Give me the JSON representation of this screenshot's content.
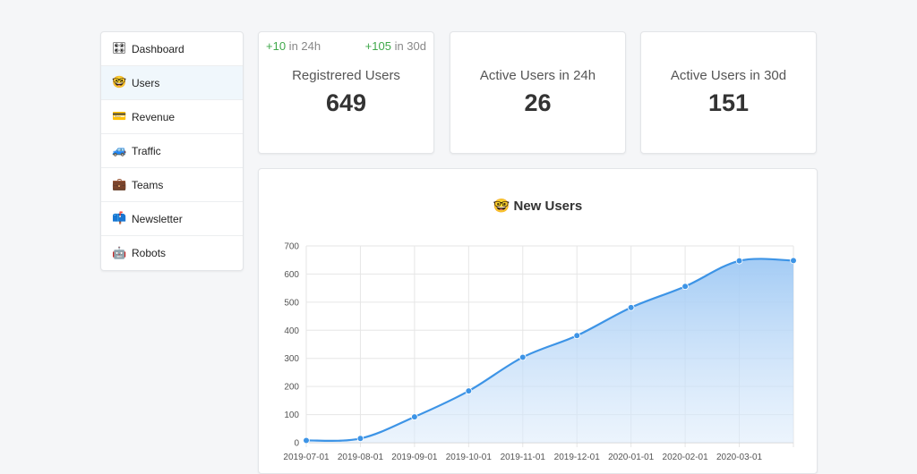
{
  "sidebar": {
    "items": [
      {
        "label": "Dashboard",
        "icon": "dashboard-icon",
        "glyph": "🎛",
        "active": false
      },
      {
        "label": "Users",
        "icon": "nerd-face-icon",
        "glyph": "🤓",
        "active": true
      },
      {
        "label": "Revenue",
        "icon": "credit-card-icon",
        "glyph": "💳",
        "active": false
      },
      {
        "label": "Traffic",
        "icon": "car-icon",
        "glyph": "🚙",
        "active": false
      },
      {
        "label": "Teams",
        "icon": "briefcase-icon",
        "glyph": "💼",
        "active": false
      },
      {
        "label": "Newsletter",
        "icon": "mailbox-icon",
        "glyph": "📫",
        "active": false
      },
      {
        "label": "Robots",
        "icon": "robot-icon",
        "glyph": "🤖",
        "active": false
      }
    ]
  },
  "stats": {
    "registered": {
      "label": "Registrered Users",
      "value": "649",
      "delta_24h": "+10",
      "delta_24h_text": " in 24h",
      "delta_30d": "+105",
      "delta_30d_text": " in 30d"
    },
    "active24": {
      "label": "Active Users in 24h",
      "value": "26"
    },
    "active30": {
      "label": "Active Users in 30d",
      "value": "151"
    }
  },
  "colors": {
    "accent": "#3d94e6",
    "positive": "#3fa84a"
  },
  "chart_data": {
    "type": "area",
    "title": "New Users",
    "title_icon": "🤓",
    "x": [
      "2019-07-01",
      "2019-08-01",
      "2019-09-01",
      "2019-10-01",
      "2019-11-01",
      "2019-12-01",
      "2020-01-01",
      "2020-02-01",
      "2020-03-01",
      ""
    ],
    "series": [
      {
        "values": [
          8,
          15,
          92,
          184,
          304,
          381,
          481,
          556,
          647,
          648
        ]
      }
    ],
    "ylim": [
      0,
      700
    ],
    "yticks": [
      0,
      100,
      200,
      300,
      400,
      500,
      600,
      700
    ],
    "grid": true
  }
}
